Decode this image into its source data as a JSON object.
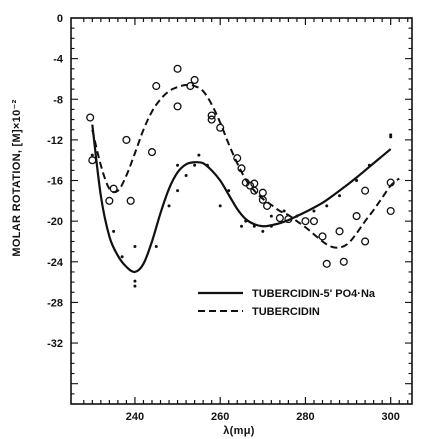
{
  "chart_data": {
    "type": "line",
    "title": "",
    "xlabel": "λ(mμ)",
    "ylabel": "MOLAR ROTATION, [M]×10⁻²",
    "xlim": [
      225,
      305
    ],
    "ylim": [
      -38,
      0
    ],
    "x_ticks": [
      240,
      260,
      280,
      300
    ],
    "x_tick_labels": [
      "240",
      "260",
      "280",
      "300"
    ],
    "y_ticks": [
      0,
      -4,
      -8,
      -12,
      -16,
      -20,
      -24,
      -28,
      -32
    ],
    "y_tick_labels": [
      "0",
      "-4",
      "-8",
      "-12",
      "-16",
      "-20",
      "-24",
      "-28",
      "-32"
    ],
    "grid": false,
    "legend_position": "lower-right",
    "series": [
      {
        "name": "TUBERCIDIN-5' PO4·Na",
        "style": "solid",
        "marker": "dot",
        "color": "#111111",
        "curve": [
          [
            230,
            -10.5
          ],
          [
            232,
            -17.5
          ],
          [
            234,
            -21.5
          ],
          [
            236,
            -23.4
          ],
          [
            238,
            -24.5
          ],
          [
            240,
            -25.0
          ],
          [
            242,
            -24.2
          ],
          [
            244,
            -22.0
          ],
          [
            246,
            -19.2
          ],
          [
            248,
            -16.8
          ],
          [
            250,
            -15.2
          ],
          [
            252,
            -14.4
          ],
          [
            254,
            -14.2
          ],
          [
            256,
            -14.3
          ],
          [
            258,
            -15.0
          ],
          [
            260,
            -16.0
          ],
          [
            262,
            -17.4
          ],
          [
            264,
            -18.8
          ],
          [
            266,
            -19.8
          ],
          [
            268,
            -20.3
          ],
          [
            270,
            -20.5
          ],
          [
            272,
            -20.4
          ],
          [
            274,
            -20.2
          ],
          [
            276,
            -19.9
          ],
          [
            278,
            -19.5
          ],
          [
            280,
            -19.1
          ],
          [
            284,
            -18.2
          ],
          [
            288,
            -17.0
          ],
          [
            292,
            -15.7
          ],
          [
            296,
            -14.3
          ],
          [
            300,
            -12.9
          ]
        ],
        "points": [
          [
            230,
            -13.5
          ],
          [
            235,
            -21.0
          ],
          [
            237,
            -23.5
          ],
          [
            240,
            -26.4
          ],
          [
            240,
            -25.9
          ],
          [
            240,
            -22.5
          ],
          [
            245,
            -22.5
          ],
          [
            248,
            -18.5
          ],
          [
            250,
            -17.0
          ],
          [
            250,
            -14.5
          ],
          [
            252,
            -15.5
          ],
          [
            254,
            -14.5
          ],
          [
            255,
            -13.5
          ],
          [
            257,
            -14.5
          ],
          [
            260,
            -18.5
          ],
          [
            262,
            -17.0
          ],
          [
            265,
            -20.5
          ],
          [
            266,
            -20.0
          ],
          [
            268,
            -20.5
          ],
          [
            270,
            -21.0
          ],
          [
            272,
            -20.5
          ],
          [
            272,
            -19.5
          ],
          [
            275,
            -19.0
          ],
          [
            278,
            -19.5
          ],
          [
            282,
            -19.0
          ],
          [
            285,
            -18.5
          ],
          [
            288,
            -17.5
          ],
          [
            292,
            -16.0
          ],
          [
            295,
            -14.5
          ],
          [
            300,
            -11.7
          ],
          [
            300,
            -11.5
          ]
        ]
      },
      {
        "name": "TUBERCIDIN",
        "style": "dashed",
        "marker": "open-circle",
        "color": "#111111",
        "curve": [
          [
            230,
            -11.0
          ],
          [
            232,
            -14.5
          ],
          [
            234,
            -16.8
          ],
          [
            236,
            -17.0
          ],
          [
            238,
            -15.5
          ],
          [
            240,
            -13.3
          ],
          [
            242,
            -11.0
          ],
          [
            244,
            -9.2
          ],
          [
            246,
            -8.0
          ],
          [
            248,
            -7.2
          ],
          [
            250,
            -6.8
          ],
          [
            252,
            -6.6
          ],
          [
            254,
            -6.7
          ],
          [
            256,
            -7.2
          ],
          [
            258,
            -8.5
          ],
          [
            260,
            -10.3
          ],
          [
            262,
            -12.4
          ],
          [
            264,
            -14.3
          ],
          [
            266,
            -15.9
          ],
          [
            268,
            -17.0
          ],
          [
            270,
            -17.8
          ],
          [
            272,
            -18.4
          ],
          [
            274,
            -19.0
          ],
          [
            276,
            -19.4
          ],
          [
            278,
            -20.0
          ],
          [
            280,
            -20.6
          ],
          [
            282,
            -21.3
          ],
          [
            284,
            -22.0
          ],
          [
            286,
            -22.5
          ],
          [
            288,
            -22.6
          ],
          [
            290,
            -22.2
          ],
          [
            292,
            -21.2
          ],
          [
            294,
            -20.0
          ],
          [
            296,
            -18.9
          ],
          [
            298,
            -17.7
          ],
          [
            300,
            -16.5
          ],
          [
            302,
            -15.8
          ]
        ],
        "points": [
          [
            229.5,
            -9.8
          ],
          [
            230,
            -14.0
          ],
          [
            234,
            -18.0
          ],
          [
            235,
            -16.8
          ],
          [
            238,
            -12.0
          ],
          [
            239,
            -18.0
          ],
          [
            244,
            -13.2
          ],
          [
            245,
            -6.7
          ],
          [
            250,
            -5.0
          ],
          [
            250,
            -8.7
          ],
          [
            253,
            -6.7
          ],
          [
            254,
            -6.1
          ],
          [
            258,
            -9.6
          ],
          [
            258,
            -10.0
          ],
          [
            260,
            -10.8
          ],
          [
            264,
            -13.8
          ],
          [
            265,
            -14.8
          ],
          [
            266,
            -16.2
          ],
          [
            267,
            -16.5
          ],
          [
            268,
            -16.3
          ],
          [
            268,
            -17.0
          ],
          [
            270,
            -17.2
          ],
          [
            270,
            -17.9
          ],
          [
            271,
            -18.5
          ],
          [
            274,
            -19.7
          ],
          [
            276,
            -19.8
          ],
          [
            280,
            -20.0
          ],
          [
            282,
            -20.0
          ],
          [
            284,
            -21.5
          ],
          [
            285,
            -24.2
          ],
          [
            288,
            -21.0
          ],
          [
            289,
            -24.0
          ],
          [
            292,
            -19.5
          ],
          [
            294,
            -17.0
          ],
          [
            294,
            -22.0
          ],
          [
            300,
            -16.2
          ],
          [
            300,
            -19.0
          ]
        ]
      }
    ]
  }
}
